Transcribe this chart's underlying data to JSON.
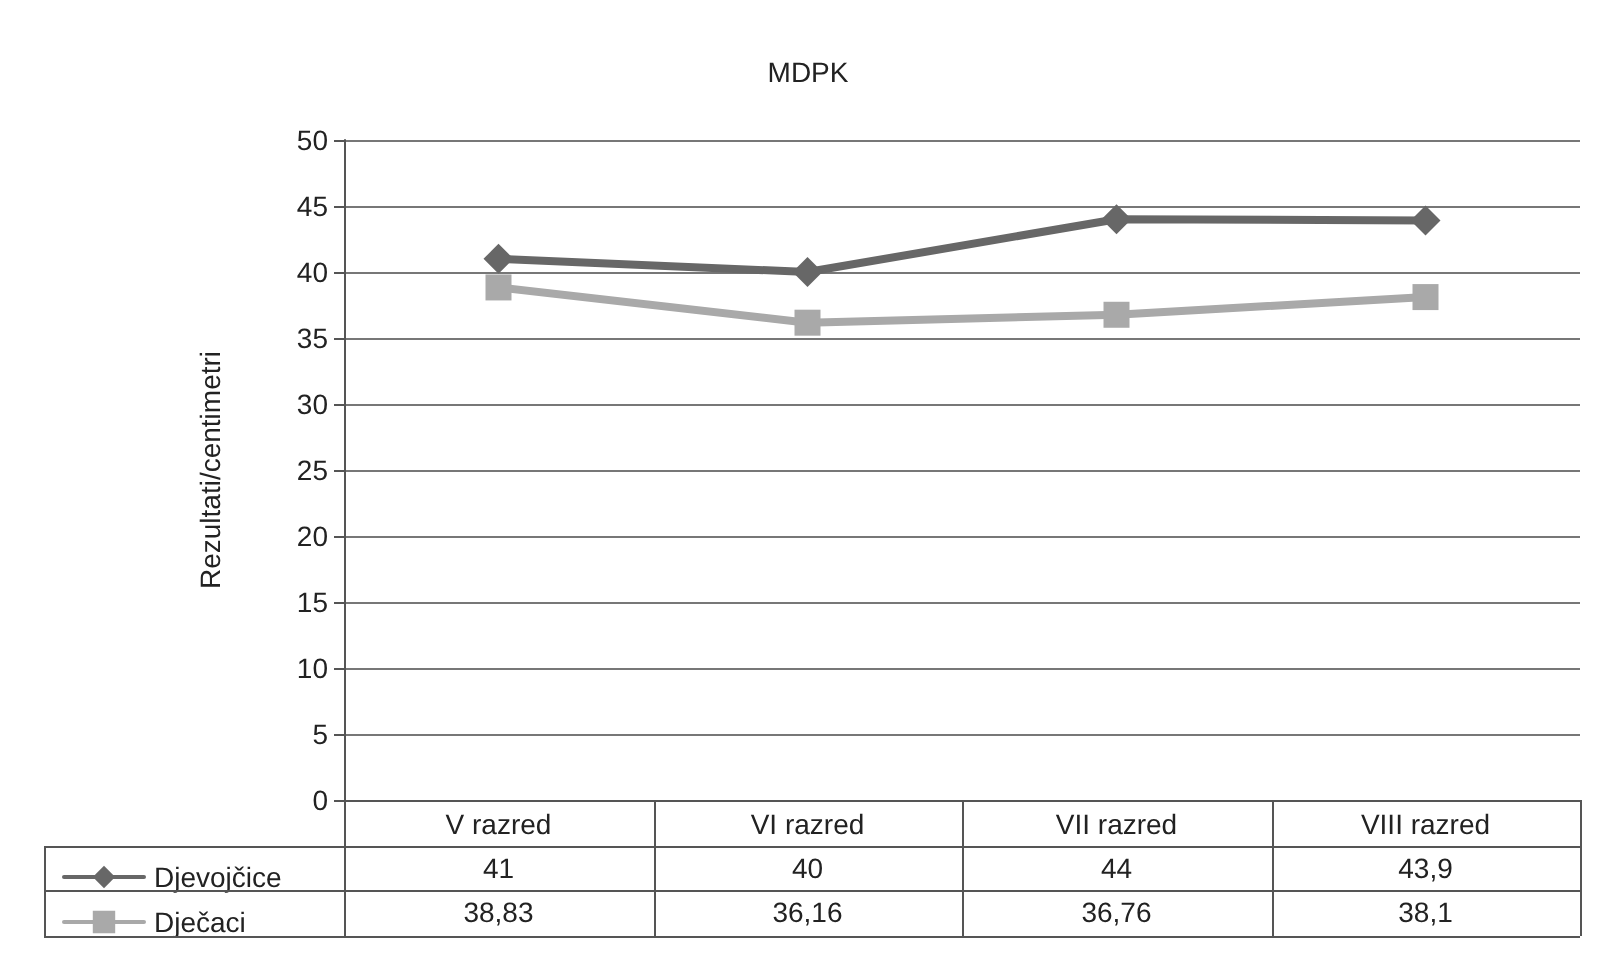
{
  "chart_data": {
    "type": "line",
    "title": "MDPK",
    "ylabel": "Rezultati/centimetri",
    "categories": [
      "V razred",
      "VI razred",
      "VII razred",
      "VIII razred"
    ],
    "series": [
      {
        "name": "Djevojčice",
        "color": "#676767",
        "marker": "diamond",
        "values": [
          41,
          40,
          44,
          43.9
        ],
        "value_labels": [
          "41",
          "40",
          "44",
          "43,9"
        ]
      },
      {
        "name": "Dječaci",
        "color": "#a9a9a9",
        "marker": "square",
        "values": [
          38.83,
          36.16,
          36.76,
          38.1
        ],
        "value_labels": [
          "38,83",
          "36,16",
          "36,76",
          "38,1"
        ]
      }
    ],
    "ylim": [
      0,
      50
    ],
    "yticks": [
      0,
      5,
      10,
      15,
      20,
      25,
      30,
      35,
      40,
      45,
      50
    ],
    "grid": "y",
    "legend": "bottom left",
    "line_style": "solid"
  }
}
